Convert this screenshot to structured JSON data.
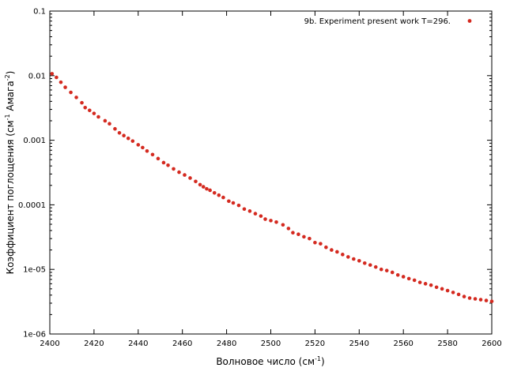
{
  "chart_data": {
    "type": "scatter",
    "title": "",
    "xlabel": "Волновое число (см",
    "xlabel_sup": "-1",
    "xlabel_tail": ")",
    "ylabel_prefix": "Коэффициент поглощения (см",
    "ylabel_sup1": "-1",
    "ylabel_mid": " Амага",
    "ylabel_sup2": "-2",
    "ylabel_tail": ")",
    "xlim": [
      2400,
      2600
    ],
    "ylim": [
      1e-06,
      0.1
    ],
    "yscale": "log",
    "grid": false,
    "legend_position": "top-right",
    "x_ticks": [
      "2400",
      "2420",
      "2440",
      "2460",
      "2480",
      "2500",
      "2520",
      "2540",
      "2560",
      "2580",
      "2600"
    ],
    "y_ticks": [
      "1e-06",
      "1e-05",
      "0.0001",
      "0.001",
      "0.01",
      "0.1"
    ],
    "series": [
      {
        "name": "9b. Experiment  present work T=296.",
        "color": "#d42a20",
        "points": [
          [
            2401.0,
            0.0107
          ],
          [
            2403.0,
            0.0094
          ],
          [
            2405.0,
            0.0079
          ],
          [
            2407.0,
            0.0066
          ],
          [
            2409.5,
            0.0055
          ],
          [
            2412.0,
            0.0046
          ],
          [
            2414.5,
            0.0038
          ],
          [
            2416.0,
            0.0032
          ],
          [
            2418.0,
            0.0029
          ],
          [
            2420.0,
            0.0026
          ],
          [
            2422.0,
            0.0023
          ],
          [
            2425.0,
            0.002
          ],
          [
            2427.0,
            0.0018
          ],
          [
            2429.5,
            0.0015
          ],
          [
            2431.5,
            0.0013
          ],
          [
            2433.5,
            0.00118
          ],
          [
            2435.5,
            0.00107
          ],
          [
            2437.5,
            0.00097
          ],
          [
            2440.0,
            0.00085
          ],
          [
            2442.0,
            0.00077
          ],
          [
            2444.0,
            0.00068
          ],
          [
            2446.5,
            0.0006
          ],
          [
            2449.0,
            0.00052
          ],
          [
            2451.5,
            0.00045
          ],
          [
            2453.5,
            0.00041
          ],
          [
            2456.0,
            0.00036
          ],
          [
            2458.5,
            0.00032
          ],
          [
            2461.0,
            0.00029
          ],
          [
            2463.5,
            0.00026
          ],
          [
            2466.0,
            0.00023
          ],
          [
            2468.0,
            0.000205
          ],
          [
            2469.5,
            0.00019
          ],
          [
            2471.0,
            0.000177
          ],
          [
            2472.5,
            0.000168
          ],
          [
            2474.5,
            0.000153
          ],
          [
            2476.5,
            0.000141
          ],
          [
            2478.5,
            0.00013
          ],
          [
            2481.0,
            0.000114
          ],
          [
            2483.0,
            0.000107
          ],
          [
            2485.5,
            9.8e-05
          ],
          [
            2488.0,
            8.6e-05
          ],
          [
            2490.5,
            8e-05
          ],
          [
            2493.0,
            7.3e-05
          ],
          [
            2495.5,
            6.7e-05
          ],
          [
            2497.5,
            6e-05
          ],
          [
            2500.0,
            5.7e-05
          ],
          [
            2502.5,
            5.4e-05
          ],
          [
            2505.5,
            4.9e-05
          ],
          [
            2508.0,
            4.3e-05
          ],
          [
            2510.0,
            3.7e-05
          ],
          [
            2512.5,
            3.5e-05
          ],
          [
            2515.0,
            3.2e-05
          ],
          [
            2517.5,
            3e-05
          ],
          [
            2520.0,
            2.6e-05
          ],
          [
            2522.5,
            2.5e-05
          ],
          [
            2525.0,
            2.2e-05
          ],
          [
            2527.5,
            2e-05
          ],
          [
            2530.0,
            1.87e-05
          ],
          [
            2532.5,
            1.7e-05
          ],
          [
            2535.0,
            1.56e-05
          ],
          [
            2537.5,
            1.45e-05
          ],
          [
            2540.0,
            1.36e-05
          ],
          [
            2542.5,
            1.25e-05
          ],
          [
            2545.0,
            1.17e-05
          ],
          [
            2547.5,
            1.09e-05
          ],
          [
            2550.0,
            1e-05
          ],
          [
            2552.5,
            9.6e-06
          ],
          [
            2555.0,
            9e-06
          ],
          [
            2557.5,
            8.2e-06
          ],
          [
            2560.0,
            7.7e-06
          ],
          [
            2562.5,
            7.2e-06
          ],
          [
            2565.0,
            6.8e-06
          ],
          [
            2567.5,
            6.3e-06
          ],
          [
            2570.0,
            6e-06
          ],
          [
            2572.5,
            5.7e-06
          ],
          [
            2575.0,
            5.3e-06
          ],
          [
            2577.5,
            5e-06
          ],
          [
            2580.0,
            4.7e-06
          ],
          [
            2582.5,
            4.4e-06
          ],
          [
            2585.0,
            4.1e-06
          ],
          [
            2587.5,
            3.8e-06
          ],
          [
            2590.0,
            3.6e-06
          ],
          [
            2592.5,
            3.5e-06
          ],
          [
            2595.0,
            3.4e-06
          ],
          [
            2597.5,
            3.3e-06
          ],
          [
            2600.0,
            3.2e-06
          ]
        ]
      }
    ]
  }
}
